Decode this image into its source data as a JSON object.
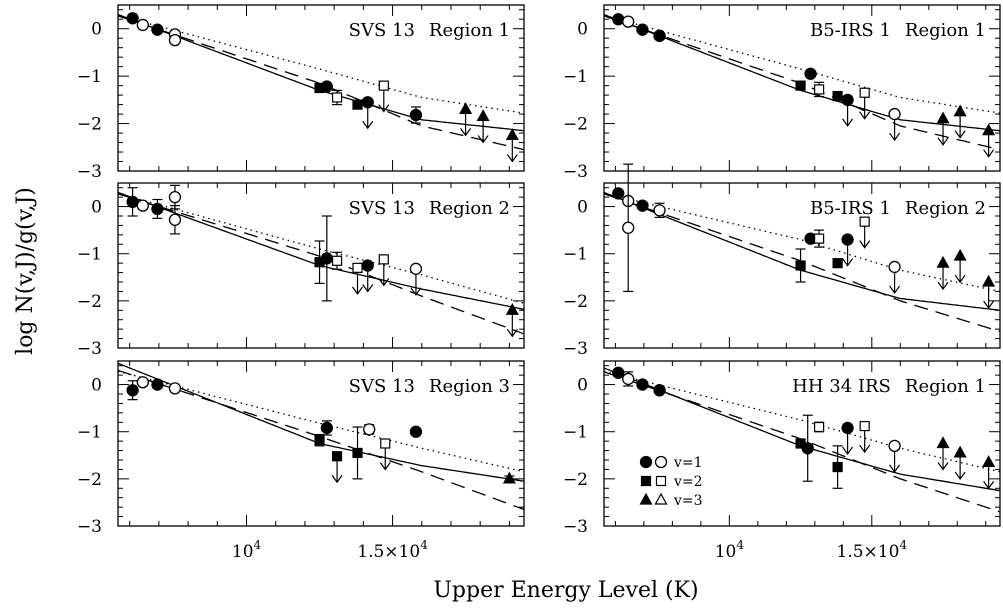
{
  "figure": {
    "xlabel": "Upper Energy Level (K)",
    "ylabel": "log N(v,J)/g(v,J)",
    "xlim": [
      5600,
      19500
    ],
    "ylim": [
      -3,
      0.5
    ],
    "x_tick_labels": [
      {
        "value": 10000,
        "label": "10"
      },
      {
        "value": 15000,
        "label": "1.5×10"
      }
    ],
    "x_tick_exponent": "4",
    "y_tick_labels": [
      "0",
      "−1",
      "−2",
      "−3"
    ],
    "legend": {
      "entries": [
        "v=1",
        "v=2",
        "v=3"
      ]
    },
    "colors": {
      "ink": "#000000",
      "background": "#ffffff"
    }
  },
  "chart_data": [
    {
      "type": "scatter",
      "panel": "top-left",
      "source": "SVS 13",
      "region": "Region 1",
      "points": [
        {
          "x": 6100,
          "y": 0.22,
          "m": "circle",
          "f": true
        },
        {
          "x": 6450,
          "y": 0.08,
          "m": "circle",
          "f": false
        },
        {
          "x": 6950,
          "y": -0.02,
          "m": "circle",
          "f": true
        },
        {
          "x": 7550,
          "y": -0.12,
          "m": "circle",
          "f": false
        },
        {
          "x": 7550,
          "y": -0.24,
          "m": "circle",
          "f": false
        },
        {
          "x": 12500,
          "y": -1.25,
          "m": "square",
          "f": true
        },
        {
          "x": 12750,
          "y": -1.22,
          "m": "circle",
          "f": true
        },
        {
          "x": 13100,
          "y": -1.45,
          "m": "square",
          "f": false,
          "err": 0.15
        },
        {
          "x": 13800,
          "y": -1.6,
          "m": "square",
          "f": true
        },
        {
          "x": 14150,
          "y": -1.55,
          "m": "circle",
          "f": true,
          "ul": true
        },
        {
          "x": 14700,
          "y": -1.2,
          "m": "square",
          "f": false,
          "ul": true
        },
        {
          "x": 15800,
          "y": -1.82,
          "m": "circle",
          "f": true,
          "err": 0.17
        },
        {
          "x": 17500,
          "y": -1.7,
          "m": "triangle",
          "f": true,
          "ul": true
        },
        {
          "x": 18100,
          "y": -1.85,
          "m": "triangle",
          "f": true,
          "ul": true
        },
        {
          "x": 19100,
          "y": -2.25,
          "m": "triangle",
          "f": true,
          "ul": true
        }
      ],
      "models": {
        "solid": [
          0.3,
          -1.3,
          -1.92,
          -2.15
        ],
        "dashed": [
          0.27,
          -1.15,
          -2.05,
          -2.55
        ],
        "dotted": [
          0.28,
          -0.85,
          -1.45,
          -1.78
        ]
      }
    },
    {
      "type": "scatter",
      "panel": "top-right",
      "source": "B5-IRS 1",
      "region": "Region 1",
      "points": [
        {
          "x": 6100,
          "y": 0.2,
          "m": "circle",
          "f": true
        },
        {
          "x": 6450,
          "y": 0.15,
          "m": "circle",
          "f": false
        },
        {
          "x": 6950,
          "y": -0.02,
          "m": "circle",
          "f": true
        },
        {
          "x": 7550,
          "y": -0.15,
          "m": "circle",
          "f": false
        },
        {
          "x": 7550,
          "y": -0.15,
          "m": "circle",
          "f": true
        },
        {
          "x": 12500,
          "y": -1.2,
          "m": "square",
          "f": true
        },
        {
          "x": 12850,
          "y": -0.95,
          "m": "circle",
          "f": true
        },
        {
          "x": 13150,
          "y": -1.28,
          "m": "square",
          "f": false,
          "err": 0.15
        },
        {
          "x": 13800,
          "y": -1.42,
          "m": "square",
          "f": true
        },
        {
          "x": 14150,
          "y": -1.5,
          "m": "circle",
          "f": true,
          "ul": true
        },
        {
          "x": 14750,
          "y": -1.35,
          "m": "square",
          "f": false,
          "ul": true
        },
        {
          "x": 15800,
          "y": -1.8,
          "m": "circle",
          "f": false,
          "ul": true
        },
        {
          "x": 17500,
          "y": -1.9,
          "m": "triangle",
          "f": true,
          "ul": true
        },
        {
          "x": 18100,
          "y": -1.75,
          "m": "triangle",
          "f": true,
          "ul": true
        },
        {
          "x": 19100,
          "y": -2.15,
          "m": "triangle",
          "f": true,
          "ul": true
        }
      ],
      "models": {
        "solid": [
          0.3,
          -1.3,
          -1.92,
          -2.15
        ],
        "dashed": [
          0.27,
          -1.15,
          -2.05,
          -2.55
        ],
        "dotted": [
          0.28,
          -0.85,
          -1.45,
          -1.78
        ]
      }
    },
    {
      "type": "scatter",
      "panel": "middle-left",
      "source": "SVS 13",
      "region": "Region 2",
      "points": [
        {
          "x": 6100,
          "y": 0.1,
          "m": "circle",
          "f": true,
          "err": 0.3
        },
        {
          "x": 6450,
          "y": 0.02,
          "m": "circle",
          "f": false
        },
        {
          "x": 6950,
          "y": -0.05,
          "m": "circle",
          "f": true,
          "err": 0.2
        },
        {
          "x": 7550,
          "y": 0.2,
          "m": "circle",
          "f": false,
          "err": 0.25
        },
        {
          "x": 7550,
          "y": -0.28,
          "m": "circle",
          "f": false,
          "err": 0.3
        },
        {
          "x": 12500,
          "y": -1.18,
          "m": "square",
          "f": true,
          "err": 0.45
        },
        {
          "x": 12750,
          "y": -1.1,
          "m": "circle",
          "f": true,
          "err": 0.9
        },
        {
          "x": 13100,
          "y": -1.15,
          "m": "square",
          "f": false,
          "err": 0.18
        },
        {
          "x": 13800,
          "y": -1.3,
          "m": "square",
          "f": false,
          "ul": true
        },
        {
          "x": 14150,
          "y": -1.25,
          "m": "circle",
          "f": true,
          "ul": true
        },
        {
          "x": 14700,
          "y": -1.12,
          "m": "square",
          "f": false,
          "ul": true
        },
        {
          "x": 15800,
          "y": -1.32,
          "m": "circle",
          "f": false,
          "ul": true
        },
        {
          "x": 19100,
          "y": -2.2,
          "m": "triangle",
          "f": true,
          "ul": true
        }
      ],
      "models": {
        "solid": [
          0.3,
          -1.25,
          -1.75,
          -2.18
        ],
        "dashed": [
          0.27,
          -1.05,
          -1.9,
          -2.7
        ],
        "dotted": [
          0.28,
          -0.9,
          -1.45,
          -2.05
        ]
      }
    },
    {
      "type": "scatter",
      "panel": "middle-right",
      "source": "B5-IRS 1",
      "region": "Region 2",
      "points": [
        {
          "x": 6100,
          "y": 0.28,
          "m": "circle",
          "f": true
        },
        {
          "x": 6450,
          "y": 0.12,
          "m": "circle",
          "f": false
        },
        {
          "x": 6450,
          "y": -0.45,
          "m": "circle",
          "f": false,
          "err": 1.35
        },
        {
          "x": 6950,
          "y": 0.02,
          "m": "circle",
          "f": true
        },
        {
          "x": 7550,
          "y": -0.08,
          "m": "circle",
          "f": false,
          "err": 0.15
        },
        {
          "x": 12500,
          "y": -1.25,
          "m": "square",
          "f": true,
          "err": 0.35
        },
        {
          "x": 12850,
          "y": -0.68,
          "m": "circle",
          "f": true
        },
        {
          "x": 13150,
          "y": -0.68,
          "m": "square",
          "f": false,
          "err": 0.18
        },
        {
          "x": 13800,
          "y": -1.2,
          "m": "square",
          "f": true
        },
        {
          "x": 14150,
          "y": -0.7,
          "m": "circle",
          "f": true,
          "ul": true
        },
        {
          "x": 14750,
          "y": -0.32,
          "m": "square",
          "f": false,
          "ul": true
        },
        {
          "x": 15800,
          "y": -1.28,
          "m": "circle",
          "f": false,
          "ul": true
        },
        {
          "x": 17500,
          "y": -1.2,
          "m": "triangle",
          "f": true,
          "ul": true
        },
        {
          "x": 18100,
          "y": -1.05,
          "m": "triangle",
          "f": true,
          "ul": true
        },
        {
          "x": 19100,
          "y": -1.6,
          "m": "triangle",
          "f": true,
          "ul": true
        }
      ],
      "models": {
        "solid": [
          0.3,
          -1.35,
          -1.95,
          -2.2
        ],
        "dashed": [
          0.27,
          -1.15,
          -2.0,
          -2.65
        ],
        "dotted": [
          0.28,
          -0.7,
          -1.35,
          -1.8
        ]
      }
    },
    {
      "type": "scatter",
      "panel": "bottom-left",
      "source": "SVS 13",
      "region": "Region 3",
      "points": [
        {
          "x": 6100,
          "y": -0.12,
          "m": "circle",
          "f": true,
          "err": 0.2
        },
        {
          "x": 6450,
          "y": 0.05,
          "m": "circle",
          "f": false
        },
        {
          "x": 6950,
          "y": 0.0,
          "m": "circle",
          "f": true
        },
        {
          "x": 7550,
          "y": -0.08,
          "m": "circle",
          "f": false
        },
        {
          "x": 12500,
          "y": -1.18,
          "m": "square",
          "f": true,
          "err": 0.12
        },
        {
          "x": 12750,
          "y": -0.92,
          "m": "circle",
          "f": true,
          "err": 0.15
        },
        {
          "x": 13100,
          "y": -1.52,
          "m": "square",
          "f": true,
          "ul": true
        },
        {
          "x": 13800,
          "y": -1.45,
          "m": "square",
          "f": true,
          "err": 0.55
        },
        {
          "x": 14200,
          "y": -0.95,
          "m": "circle",
          "f": false,
          "err": 0.1
        },
        {
          "x": 14750,
          "y": -1.25,
          "m": "square",
          "f": false,
          "ul": true
        },
        {
          "x": 15800,
          "y": -1.0,
          "m": "circle",
          "f": true,
          "err": 0.06
        },
        {
          "x": 19000,
          "y": -2.0,
          "m": "triangle",
          "f": true,
          "err": 0.06
        }
      ],
      "models": {
        "solid": [
          0.45,
          -1.25,
          -1.72,
          -2.05
        ],
        "dashed": [
          0.3,
          -1.1,
          -1.85,
          -2.65
        ],
        "dotted": [
          0.28,
          -0.82,
          -1.35,
          -1.85
        ]
      }
    },
    {
      "type": "scatter",
      "panel": "bottom-right",
      "source": "HH 34 IRS",
      "region": "Region 1",
      "points": [
        {
          "x": 6100,
          "y": 0.25,
          "m": "circle",
          "f": true
        },
        {
          "x": 6450,
          "y": 0.12,
          "m": "circle",
          "f": false,
          "err": 0.15
        },
        {
          "x": 6950,
          "y": 0.0,
          "m": "circle",
          "f": true
        },
        {
          "x": 7550,
          "y": -0.12,
          "m": "circle",
          "f": false
        },
        {
          "x": 7550,
          "y": -0.12,
          "m": "circle",
          "f": true
        },
        {
          "x": 12500,
          "y": -1.25,
          "m": "square",
          "f": true
        },
        {
          "x": 12750,
          "y": -1.35,
          "m": "circle",
          "f": true,
          "err": 0.7
        },
        {
          "x": 13150,
          "y": -0.9,
          "m": "square",
          "f": false,
          "err": 0.1
        },
        {
          "x": 13800,
          "y": -1.75,
          "m": "square",
          "f": true,
          "err": 0.45
        },
        {
          "x": 14150,
          "y": -0.92,
          "m": "circle",
          "f": true,
          "ul": true
        },
        {
          "x": 14750,
          "y": -0.88,
          "m": "square",
          "f": false,
          "ul": true
        },
        {
          "x": 15800,
          "y": -1.3,
          "m": "circle",
          "f": false,
          "ul": true
        },
        {
          "x": 17500,
          "y": -1.25,
          "m": "triangle",
          "f": true,
          "ul": true
        },
        {
          "x": 18100,
          "y": -1.45,
          "m": "triangle",
          "f": true,
          "ul": true
        },
        {
          "x": 19100,
          "y": -1.65,
          "m": "triangle",
          "f": true,
          "ul": true
        }
      ],
      "models": {
        "solid": [
          0.35,
          -1.3,
          -1.9,
          -2.25
        ],
        "dashed": [
          0.27,
          -1.15,
          -2.0,
          -2.7
        ],
        "dotted": [
          0.28,
          -0.75,
          -1.35,
          -1.85
        ]
      }
    }
  ]
}
